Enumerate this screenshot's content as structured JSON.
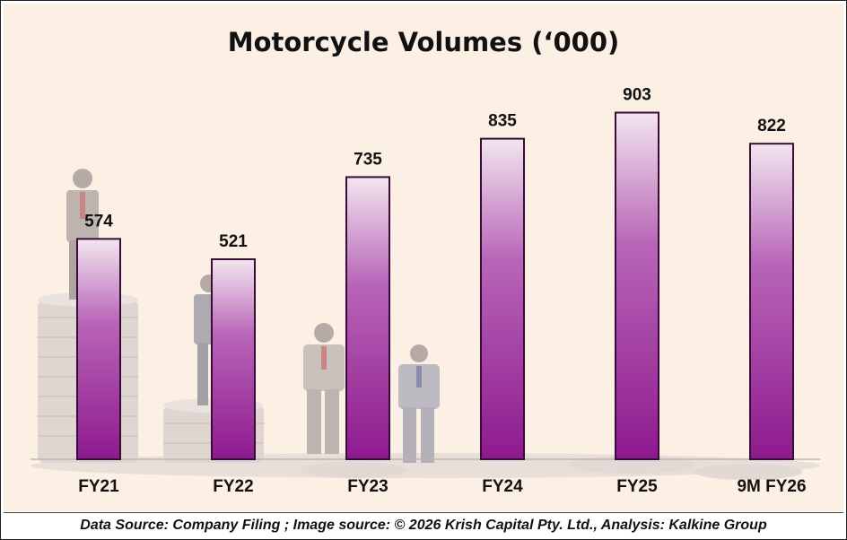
{
  "chart_data": {
    "type": "bar",
    "title": "Motorcycle Volumes (‘000)",
    "categories": [
      "FY21",
      "FY22",
      "FY23",
      "FY24",
      "FY25",
      "9M FY26"
    ],
    "values": [
      574,
      521,
      735,
      835,
      903,
      822
    ],
    "xlabel": "",
    "ylabel": "",
    "ylim": [
      0,
      1000
    ],
    "grid": false,
    "legend": "none",
    "bar_color": "#8e1a8e",
    "bar_edge_color": "#3a0a3a"
  },
  "footer": {
    "source_note": "Data Source: Company Filing ; Image source: © 2026 Krish Capital Pty. Ltd., Analysis: Kalkine Group"
  },
  "colors": {
    "background": "#fcefe3",
    "figure_tint": "#d9d3d6"
  }
}
